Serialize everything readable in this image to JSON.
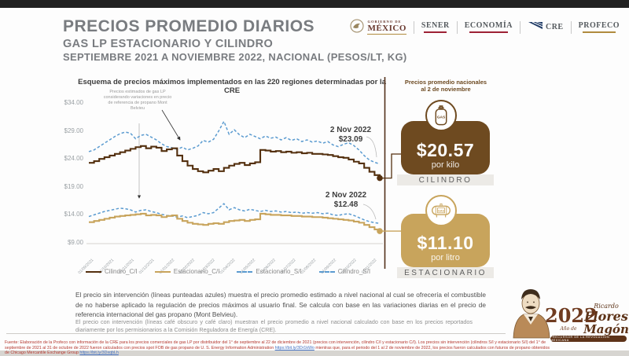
{
  "header": {
    "title": "PRECIOS PROMEDIO DIARIOS",
    "subtitle": "GAS LP ESTACIONARIO Y CILINDRO",
    "subtitle2": "SEPTIEMBRE 2021 A NOVIEMBRE 2022, NACIONAL (PESOS/LT, KG)",
    "logos": {
      "gob_top": "GOBIERNO DE",
      "gob_main": "MÉXICO",
      "sener": "SENER",
      "economia": "ECONOMÍA",
      "cre": "CRE",
      "profeco": "PROFECO"
    }
  },
  "colors": {
    "brown_dark": "#6E4A20",
    "gold": "#C8A45C",
    "blue_dashed": "#5B9BD0",
    "line_dark_brown": "#54300F",
    "footer_red": "#B5382F",
    "link_blue": "#4472C4"
  },
  "chart_data": {
    "type": "line",
    "title": "Esquema de precios máximos implementados en las 220 regiones determinadas por la CRE",
    "note": "Precios estimados de gas LP considerando variaciones en precio de referencia de propano Mont Belvieu",
    "ylim": [
      9,
      34
    ],
    "y_ticks": [
      "$34.00",
      "$29.00",
      "$24.00",
      "$19.00",
      "$14.00",
      "$9.00"
    ],
    "x_ticks": [
      "01/09/2021",
      "01/10/2021",
      "01/11/2021",
      "01/12/2021",
      "01/01/2022",
      "01/02/2022",
      "01/03/2022",
      "01/04/2022",
      "01/05/2022",
      "01/06/2022",
      "01/07/2022",
      "01/08/2022",
      "01/09/2022",
      "01/10/2022",
      "01/11/2022"
    ],
    "legend_position": "bottom",
    "grid": false,
    "callouts": [
      {
        "label": "2 Nov 2022",
        "value": "$23.09"
      },
      {
        "label": "2 Nov 2022",
        "value": "$12.48"
      }
    ],
    "series": [
      {
        "name": "Cilindro_C/I",
        "color": "#54300F",
        "style": "solid",
        "step": true,
        "end_dot": true,
        "values": [
          23.3,
          23.6,
          24.0,
          24.3,
          24.6,
          24.9,
          25.2,
          25.5,
          25.8,
          26.1,
          26.3,
          25.9,
          26.2,
          26.0,
          25.4,
          25.7,
          25.9,
          24.6,
          23.6,
          22.8,
          22.2,
          21.8,
          21.6,
          21.9,
          22.2,
          21.8,
          22.4,
          22.8,
          23.1,
          23.3,
          22.9,
          23.2,
          23.4,
          25.6,
          25.5,
          25.3,
          25.4,
          25.2,
          25.3,
          25.1,
          25.2,
          25.0,
          25.1,
          24.9,
          24.9,
          24.8,
          24.7,
          24.5,
          24.3,
          24.2,
          23.9,
          23.5,
          23.2,
          22.4,
          21.7,
          21.1,
          20.57
        ]
      },
      {
        "name": "Estacionario_C/I",
        "color": "#C8A45C",
        "style": "solid",
        "step": true,
        "end_dot": true,
        "values": [
          12.7,
          12.9,
          13.1,
          13.3,
          13.5,
          13.7,
          13.8,
          13.9,
          14.0,
          14.1,
          14.2,
          13.9,
          14.0,
          13.9,
          13.6,
          13.8,
          13.9,
          13.3,
          12.9,
          12.6,
          12.4,
          12.3,
          12.2,
          12.4,
          12.5,
          12.4,
          12.7,
          12.9,
          13.0,
          13.1,
          12.9,
          13.1,
          13.2,
          14.2,
          14.1,
          14.0,
          14.0,
          13.9,
          13.9,
          13.8,
          13.8,
          13.7,
          13.7,
          13.6,
          13.6,
          13.5,
          13.4,
          13.3,
          13.2,
          13.1,
          13.0,
          12.8,
          12.6,
          12.2,
          11.8,
          11.4,
          11.1
        ]
      },
      {
        "name": "Estacionario_S/I",
        "color": "#5B9BD0",
        "style": "dashed",
        "step": false,
        "end_dot": false,
        "values": [
          13.7,
          14.0,
          14.3,
          14.6,
          14.8,
          15.0,
          15.2,
          15.1,
          14.9,
          14.5,
          14.8,
          14.9,
          14.6,
          14.4,
          14.1,
          13.9,
          13.8,
          13.6,
          13.8,
          13.5,
          13.7,
          13.9,
          14.4,
          14.2,
          14.4,
          15.2,
          16.0,
          14.9,
          15.3,
          14.9,
          14.7,
          15.0,
          14.8,
          14.6,
          14.8,
          14.6,
          14.7,
          14.5,
          14.6,
          14.4,
          14.5,
          14.3,
          14.4,
          14.3,
          14.4,
          14.2,
          14.3,
          14.0,
          13.9,
          14.1,
          14.2,
          13.9,
          13.5,
          13.1,
          12.8,
          12.6,
          12.48
        ]
      },
      {
        "name": "Cilindro_S/I",
        "color": "#5B9BD0",
        "style": "dashed",
        "step": false,
        "end_dot": false,
        "values": [
          25.3,
          25.6,
          26.2,
          26.8,
          27.4,
          28.0,
          28.5,
          28.8,
          28.6,
          27.6,
          28.2,
          28.4,
          27.9,
          27.4,
          26.7,
          26.2,
          26.0,
          25.7,
          26.1,
          25.6,
          25.9,
          26.3,
          27.3,
          27.0,
          27.5,
          29.0,
          30.7,
          28.4,
          29.2,
          28.3,
          27.8,
          28.4,
          28.0,
          27.6,
          28.1,
          27.7,
          27.9,
          27.4,
          27.8,
          27.3,
          27.6,
          27.1,
          27.4,
          27.0,
          27.2,
          26.8,
          27.1,
          26.5,
          26.2,
          26.6,
          26.9,
          26.4,
          25.6,
          24.6,
          23.8,
          23.4,
          23.09
        ]
      }
    ]
  },
  "panel": {
    "header_line1": "Precios promedio nacionales",
    "header_line2": "al 2 de noviembre",
    "cards": [
      {
        "price": "$20.57",
        "unit": "por kilo",
        "label": "CILINDRO",
        "icon_label": "GAS",
        "color": "#6E4A20"
      },
      {
        "price": "$11.10",
        "unit": "por litro",
        "label": "ESTACIONARIO",
        "icon_label": "GAS",
        "color": "#C8A45C"
      }
    ]
  },
  "paragraphs": {
    "p1": "El precio sin intervención (líneas punteadas azules) muestra el precio promedio estimado a nivel nacional al cual se ofrecería el combustible de no haberse aplicado la regulación de precios máximos al usuario final. Se calcula con base en las variaciones diarias en el precio de referencia internacional del gas propano (Mont Belvieu).",
    "p2": "El precio con intervención (líneas café obscuro y café claro) muestran el precio promedio a nivel nacional calculado con base en los precios reportados diariamente por los permisionarios a la Comisión Reguladora de Energía (CRE)."
  },
  "footer": {
    "seg1": "Fuente: Elaboración de la Profeco con información de la CRE para los precios comerciales de gas LP por distribuidor del 1° de septiembre al 22 de diciembre de 2021 (precios con intervención, cilindro C/I y estacionario C/I). Los precios sin intervención (cilindros S/I y estacionario S/I) del 1° de septiembre de 2021 al 31 de octubre de 2022 fueron calculados con precios spot FOB de gas propano de U. S. Energy Information Administration ",
    "link1": "https://bit.ly/3Dr1kWo",
    "seg2": " mientras que, para el periodo del 1 al 2 de noviembre de 2022, los precios fueron calculados con futuros de propano obtenidos de Chicago Mercantile Exchange Group ",
    "link2": "https://bit.ly/3DxqbLh"
  },
  "magon": {
    "year": "2022",
    "ano_de": "Año de",
    "name1": "Ricardo",
    "name2": "Flores",
    "name3": "Magón",
    "banner": "PRECURSOR DE LA REVOLUCIÓN MEXICANA"
  }
}
